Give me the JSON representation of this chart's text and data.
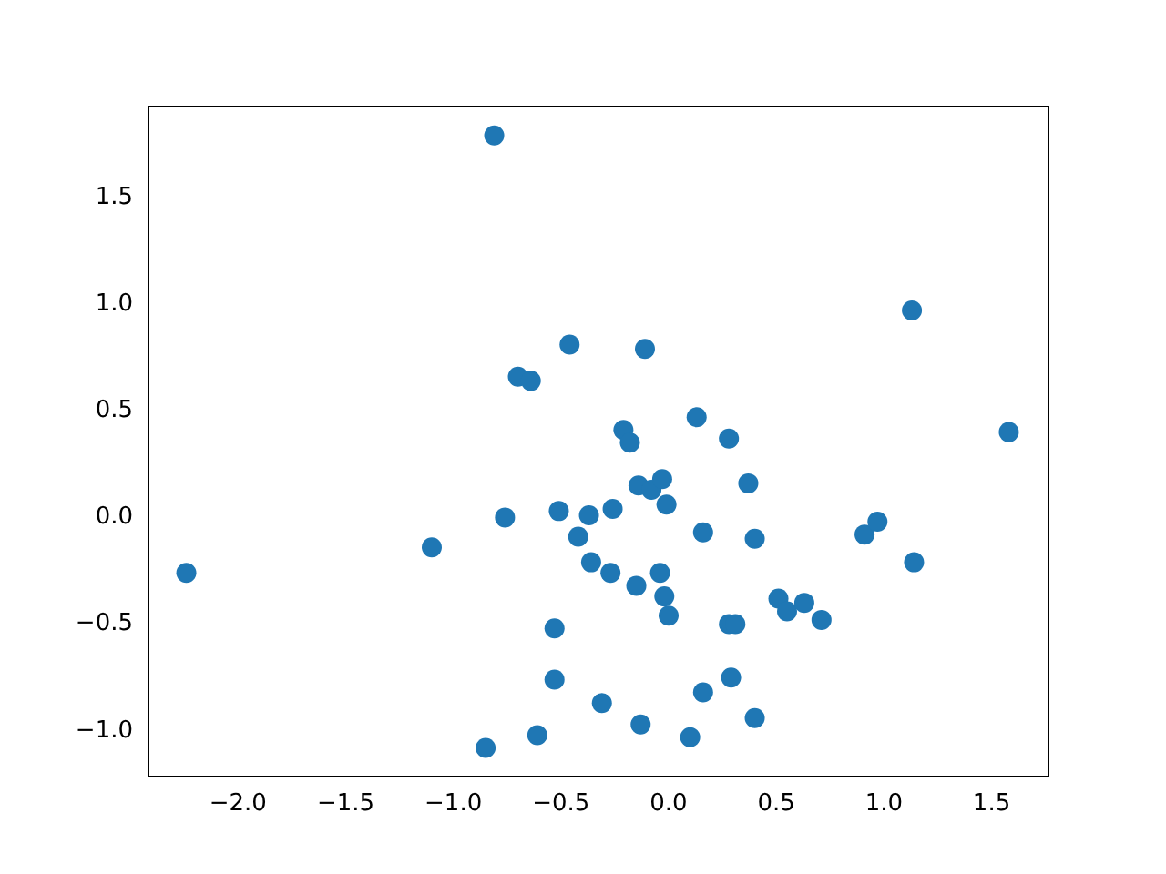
{
  "chart_data": {
    "type": "scatter",
    "color": "#1f77b4",
    "marker": "circle",
    "x": [
      -2.24,
      -1.1,
      -0.81,
      -0.85,
      -0.76,
      -0.7,
      -0.64,
      -0.46,
      -0.11,
      -0.51,
      -0.53,
      -0.53,
      -0.61,
      -0.42,
      -0.37,
      -0.36,
      -0.26,
      -0.27,
      -0.31,
      -0.21,
      -0.18,
      -0.14,
      -0.08,
      -0.03,
      -0.01,
      -0.15,
      -0.04,
      -0.02,
      0.0,
      -0.13,
      0.13,
      0.28,
      0.37,
      0.16,
      0.4,
      0.16,
      0.1,
      0.4,
      0.29,
      0.28,
      0.31,
      0.51,
      0.55,
      0.63,
      0.71,
      0.91,
      0.97,
      1.13,
      1.14,
      1.58
    ],
    "values": [
      -0.26,
      -0.14,
      1.79,
      -1.08,
      0.0,
      0.66,
      0.64,
      0.81,
      0.79,
      0.03,
      -0.52,
      -0.76,
      -1.02,
      -0.09,
      0.01,
      -0.21,
      0.04,
      -0.26,
      -0.87,
      0.41,
      0.35,
      0.15,
      0.13,
      0.18,
      0.06,
      -0.32,
      -0.26,
      -0.37,
      -0.46,
      -0.97,
      0.47,
      0.37,
      0.16,
      -0.07,
      -0.1,
      -0.82,
      -1.03,
      -0.94,
      -0.75,
      -0.5,
      -0.5,
      -0.38,
      -0.44,
      -0.4,
      -0.48,
      -0.08,
      -0.02,
      0.97,
      -0.21,
      0.4
    ],
    "xlim": [
      -2.42,
      1.76
    ],
    "ylim": [
      -1.21,
      1.93
    ],
    "xticks": [
      {
        "value": -2,
        "label": "−2.0"
      },
      {
        "value": -1.5,
        "label": "−1.5"
      },
      {
        "value": -1,
        "label": "−1.0"
      },
      {
        "value": -0.5,
        "label": "−0.5"
      },
      {
        "value": 0,
        "label": "0.0"
      },
      {
        "value": 0.5,
        "label": "0.5"
      },
      {
        "value": 1,
        "label": "1.0"
      },
      {
        "value": 1.5,
        "label": "1.5"
      }
    ],
    "yticks": [
      {
        "value": -1,
        "label": "−1.0"
      },
      {
        "value": -0.5,
        "label": "−0.5"
      },
      {
        "value": 0,
        "label": "0.0"
      },
      {
        "value": 0.5,
        "label": "0.5"
      },
      {
        "value": 1,
        "label": "1.0"
      },
      {
        "value": 1.5,
        "label": "1.5"
      }
    ]
  }
}
